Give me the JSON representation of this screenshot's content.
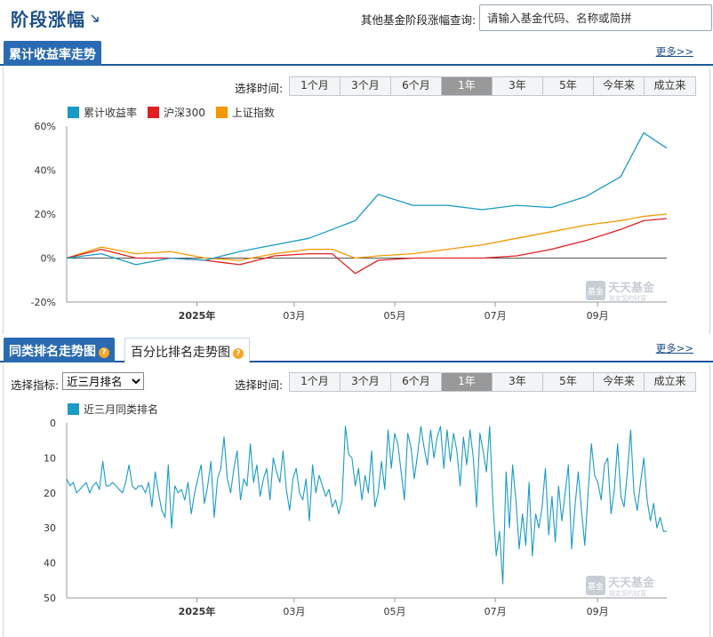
{
  "header": {
    "title": "阶段涨幅",
    "query_label": "其他基金阶段涨幅查询:",
    "query_placeholder": "请输入基金代码、名称或简拼"
  },
  "section1": {
    "tab_label": "累计收益率走势",
    "more": "更多>>",
    "time_label": "选择时间:",
    "time_buttons": [
      "1个月",
      "3个月",
      "6个月",
      "1年",
      "3年",
      "5年",
      "今年来",
      "成立来"
    ],
    "active_time": "1年"
  },
  "section2": {
    "tab_label": "同类排名走势图",
    "tab2_label": "百分比排名走势图",
    "more": "更多>>",
    "indicator_label": "选择指标:",
    "indicator_value": "近三月排名",
    "time_label": "选择时间:",
    "time_buttons": [
      "1个月",
      "3个月",
      "6个月",
      "1年",
      "3年",
      "5年",
      "今年来",
      "成立来"
    ],
    "active_time": "1年"
  },
  "watermark": {
    "text": "天天基金",
    "sub": "锁定您的财富",
    "badge": "基金"
  },
  "colors": {
    "fund": "#1a9ac6",
    "hs300": "#e02020",
    "sz": "#f39800",
    "brand": "#2a6ab2"
  },
  "chart_data": [
    {
      "type": "line",
      "x_ticks": [
        "2025年",
        "03月",
        "05月",
        "07月",
        "09月"
      ],
      "ylim": [
        -20,
        60
      ],
      "y_ticks": [
        "60%",
        "40%",
        "20%",
        "0%",
        "-20%"
      ],
      "grid": false,
      "legend": "top-left",
      "x_dates": [
        "2024-10-14",
        "2024-11-04",
        "2024-11-25",
        "2024-12-16",
        "2025-01-06",
        "2025-01-27",
        "2025-02-17",
        "2025-03-10",
        "2025-03-24",
        "2025-04-07",
        "2025-04-21",
        "2025-05-12",
        "2025-06-02",
        "2025-06-23",
        "2025-07-14",
        "2025-08-04",
        "2025-08-25",
        "2025-09-15",
        "2025-09-29",
        "2025-10-13"
      ],
      "series": [
        {
          "name": "累计收益率",
          "values": [
            0,
            2,
            -3,
            0,
            -1,
            3,
            6,
            9,
            13,
            17,
            29,
            24,
            24,
            22,
            24,
            23,
            28,
            37,
            57,
            50
          ]
        },
        {
          "name": "沪深300",
          "values": [
            0,
            4,
            0,
            0,
            -1,
            -3,
            1,
            2,
            2,
            -7,
            -1,
            0,
            0,
            0,
            1,
            4,
            8,
            13,
            17,
            18
          ]
        },
        {
          "name": "上证指数",
          "values": [
            0,
            5,
            2,
            3,
            0,
            -1,
            2,
            4,
            4,
            0,
            1,
            2,
            4,
            6,
            9,
            12,
            15,
            17,
            19,
            20
          ]
        }
      ]
    },
    {
      "type": "line",
      "x_ticks": [
        "2025年",
        "03月",
        "05月",
        "07月",
        "09月"
      ],
      "ylim": [
        0,
        50
      ],
      "y_ticks": [
        "0",
        "10",
        "20",
        "30",
        "40",
        "50"
      ],
      "y_inverted": true,
      "grid": false,
      "legend": "top-left",
      "series": [
        {
          "name": "近三月同类排名",
          "values": [
            16,
            18,
            17,
            20,
            19,
            18,
            17,
            20,
            18,
            17,
            19,
            11,
            18,
            18,
            17,
            18,
            19,
            20,
            17,
            12,
            18,
            19,
            18,
            18,
            20,
            17,
            24,
            14,
            20,
            25,
            27,
            12,
            30,
            18,
            20,
            19,
            22,
            17,
            26,
            20,
            16,
            12,
            23,
            18,
            11,
            27,
            16,
            13,
            4,
            16,
            20,
            13,
            8,
            22,
            16,
            18,
            6,
            17,
            12,
            21,
            16,
            13,
            22,
            10,
            14,
            17,
            8,
            19,
            25,
            16,
            13,
            20,
            22,
            16,
            28,
            12,
            20,
            15,
            18,
            21,
            19,
            24,
            22,
            26,
            22,
            1,
            9,
            10,
            18,
            13,
            22,
            15,
            20,
            8,
            24,
            20,
            11,
            19,
            2,
            13,
            3,
            6,
            14,
            22,
            3,
            7,
            16,
            9,
            1,
            7,
            12,
            2,
            10,
            4,
            1,
            13,
            2,
            11,
            3,
            8,
            18,
            4,
            12,
            2,
            10,
            24,
            3,
            8,
            14,
            1,
            23,
            38,
            31,
            46,
            14,
            30,
            12,
            22,
            36,
            26,
            35,
            17,
            38,
            26,
            30,
            24,
            13,
            32,
            21,
            34,
            18,
            28,
            20,
            12,
            36,
            24,
            14,
            25,
            35,
            20,
            6,
            15,
            17,
            22,
            12,
            10,
            26,
            19,
            6,
            21,
            24,
            14,
            2,
            20,
            25,
            17,
            10,
            22,
            28,
            23,
            30,
            27,
            31,
            31
          ]
        }
      ]
    }
  ]
}
